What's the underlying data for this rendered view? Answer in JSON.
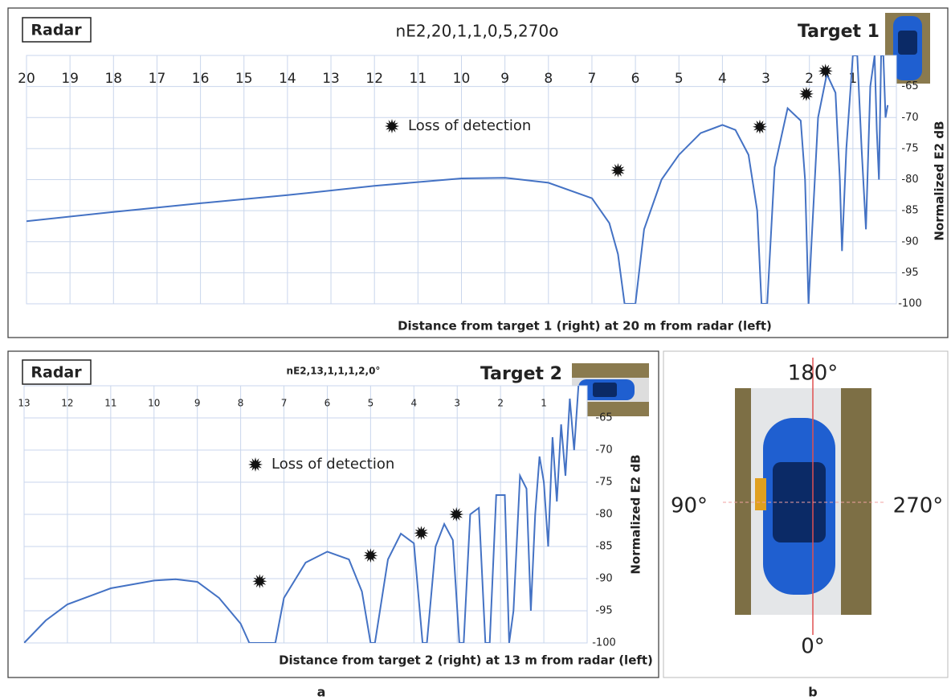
{
  "chart_data": [
    {
      "type": "line",
      "title": "nE2,20,1,1,0,5,270o",
      "radar_label": "Radar",
      "target_label": "Target 1",
      "x_label": "Distance from target 1 (right) at 20 m from radar (left)",
      "y_label": "Normalized E2 dB",
      "xlim": [
        20,
        0
      ],
      "xticks": [
        20,
        19,
        18,
        17,
        16,
        15,
        14,
        13,
        12,
        11,
        10,
        9,
        8,
        7,
        6,
        5,
        4,
        3,
        2,
        1
      ],
      "ylim": [
        -100,
        -60
      ],
      "yticks": [
        -65,
        -70,
        -75,
        -80,
        -85,
        -90,
        -95,
        -100
      ],
      "grid": true,
      "color": "#4472c4",
      "x": [
        20,
        18,
        16,
        14,
        12,
        10,
        9,
        8,
        7,
        6.6,
        6.4,
        6.25,
        6.0,
        5.8,
        5.4,
        5.0,
        4.5,
        4.0,
        3.7,
        3.4,
        3.2,
        3.1,
        2.97,
        2.8,
        2.5,
        2.2,
        2.1,
        2.02,
        1.95,
        1.8,
        1.6,
        1.4,
        1.3,
        1.25,
        1.15,
        1.0,
        0.9,
        0.8,
        0.7,
        0.6,
        0.5,
        0.45,
        0.4,
        0.35,
        0.3,
        0.25,
        0.2
      ],
      "values": [
        -86.7,
        -85.2,
        -83.8,
        -82.5,
        -81,
        -79.8,
        -79.7,
        -80.5,
        -83,
        -87,
        -92,
        -100,
        -100,
        -88,
        -80,
        -76,
        -72.5,
        -71.2,
        -72,
        -76,
        -85,
        -100,
        -100,
        -78,
        -68.5,
        -70.5,
        -80,
        -100,
        -90,
        -70,
        -63,
        -66,
        -80,
        -91.5,
        -75,
        -60,
        -60,
        -75,
        -88,
        -65,
        -60,
        -72,
        -80,
        -60,
        -60,
        -70,
        -68
      ],
      "markers": {
        "name": "Loss of detection",
        "color": "#111",
        "x": [
          6.4,
          3.14,
          2.07,
          1.63
        ],
        "y": [
          -78.5,
          -71.5,
          -66.2,
          -62.5
        ]
      }
    },
    {
      "type": "line",
      "title": "nE2,13,1,1,1,2,0°",
      "radar_label": "Radar",
      "target_label": "Target 2",
      "x_label": "Distance from target 2  (right)  at 13 m  from radar (left)",
      "y_label": "Normalized E2 dB",
      "xlim": [
        13,
        0
      ],
      "xticks": [
        13,
        12,
        11,
        10,
        9,
        8,
        7,
        6,
        5,
        4,
        3,
        2,
        1
      ],
      "ylim": [
        -100,
        -60
      ],
      "yticks": [
        -65,
        -70,
        -75,
        -80,
        -85,
        -90,
        -95,
        -100
      ],
      "grid": true,
      "color": "#4472c4",
      "x": [
        13,
        12.5,
        12,
        11,
        10,
        9.5,
        9,
        8.5,
        8,
        7.8,
        7.2,
        7,
        6.5,
        6,
        5.5,
        5.2,
        5.0,
        4.9,
        4.6,
        4.3,
        4.0,
        3.8,
        3.7,
        3.5,
        3.3,
        3.1,
        2.95,
        2.85,
        2.7,
        2.5,
        2.35,
        2.25,
        2.1,
        1.9,
        1.8,
        1.7,
        1.55,
        1.4,
        1.3,
        1.2,
        1.1,
        1.0,
        0.9,
        0.8,
        0.7,
        0.6,
        0.5,
        0.4,
        0.3,
        0.2
      ],
      "values": [
        -100,
        -96.5,
        -94,
        -91.5,
        -90.3,
        -90.1,
        -90.5,
        -93,
        -97,
        -100,
        -100,
        -93,
        -87.5,
        -85.8,
        -87,
        -92,
        -100,
        -100,
        -87,
        -83,
        -84.5,
        -100,
        -100,
        -85,
        -81.5,
        -84,
        -100,
        -100,
        -80,
        -79,
        -100,
        -100,
        -77,
        -77,
        -100,
        -95,
        -74,
        -76,
        -95,
        -80,
        -71,
        -75,
        -85,
        -68,
        -78,
        -66,
        -74,
        -62,
        -70,
        -60
      ],
      "markers": {
        "name": "Loss of detection",
        "color": "#111",
        "x": [
          7.56,
          5.0,
          3.83,
          3.02
        ],
        "y": [
          -90.4,
          -86.4,
          -82.9,
          -80
        ]
      }
    }
  ],
  "orientation": {
    "top": "180°",
    "left": "90°",
    "right": "270°",
    "bottom": "0°"
  },
  "panel_labels": [
    "a",
    "b"
  ]
}
